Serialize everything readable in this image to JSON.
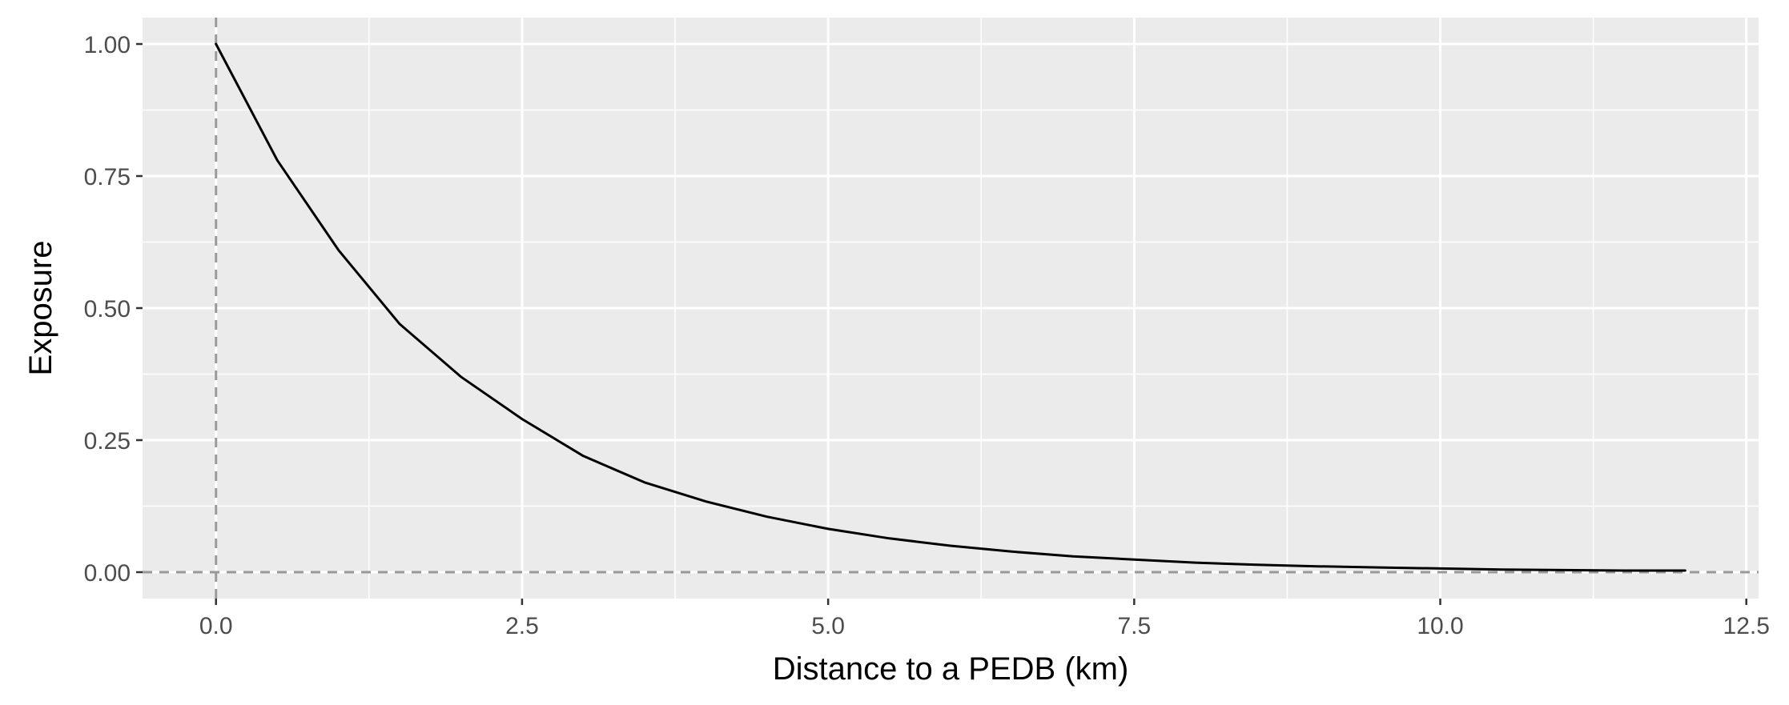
{
  "chart_data": {
    "type": "line",
    "title": "",
    "xlabel": "Distance to a PEDB (km)",
    "ylabel": "Exposure",
    "xlim": [
      -0.6,
      12.6
    ],
    "ylim": [
      -0.05,
      1.05
    ],
    "x_ticks": [
      0,
      2.5,
      5,
      7.5,
      10,
      12.5
    ],
    "x_tick_labels": [
      "0.0",
      "2.5",
      "5.0",
      "7.5",
      "10.0",
      "12.5"
    ],
    "y_ticks": [
      0,
      0.25,
      0.5,
      0.75,
      1
    ],
    "y_tick_labels": [
      "0.00",
      "0.25",
      "0.50",
      "0.75",
      "1.00"
    ],
    "grid": true,
    "reference_lines": [
      {
        "orientation": "vertical",
        "x": 0,
        "style": "dashed"
      },
      {
        "orientation": "horizontal",
        "y": 0,
        "style": "dashed"
      }
    ],
    "series": [
      {
        "x": [
          0,
          0.5,
          1,
          1.5,
          2,
          2.5,
          3,
          3.5,
          4,
          4.5,
          5,
          5.5,
          6,
          6.5,
          7,
          7.5,
          8,
          8.5,
          9,
          9.5,
          10,
          10.5,
          11,
          11.5,
          12
        ],
        "values": [
          1.0,
          0.78,
          0.61,
          0.47,
          0.37,
          0.29,
          0.22,
          0.17,
          0.134,
          0.105,
          0.082,
          0.064,
          0.05,
          0.039,
          0.03,
          0.024,
          0.018,
          0.014,
          0.011,
          0.009,
          0.007,
          0.005,
          0.004,
          0.003,
          0.003
        ]
      }
    ]
  },
  "colors": {
    "panel_background": "#ebebeb",
    "grid": "#ffffff",
    "line": "#000000",
    "reference_line": "#999999",
    "tick_text": "#4d4d4d",
    "tick_mark": "#333333"
  }
}
